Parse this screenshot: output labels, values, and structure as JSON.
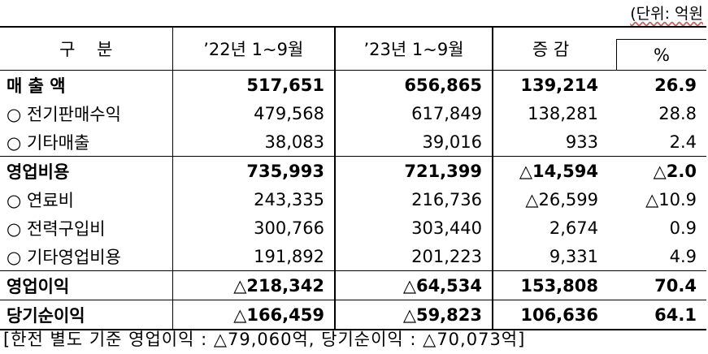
{
  "unit_label": "(단위: 억원",
  "headers": {
    "category": "구    분",
    "y2022": "’22년 1~9월",
    "y2023": "’23년 1~9월",
    "change": "증 감",
    "percent": "%"
  },
  "rows": [
    {
      "label": "매 출 액",
      "y2022": "517,651",
      "y2023": "656,865",
      "change": "139,214",
      "percent": "26.9",
      "bold": true
    },
    {
      "label": "○ 전기판매수익",
      "y2022": "479,568",
      "y2023": "617,849",
      "change": "138,281",
      "percent": "28.8",
      "bold": false
    },
    {
      "label": "○ 기타매출",
      "y2022": "38,083",
      "y2023": "39,016",
      "change": "933",
      "percent": "2.4",
      "bold": false
    },
    {
      "label": "영업비용",
      "y2022": "735,993",
      "y2023": "721,399",
      "change": "△14,594",
      "percent": "△2.0",
      "bold": true
    },
    {
      "label": "○ 연료비",
      "y2022": "243,335",
      "y2023": "216,736",
      "change": "△26,599",
      "percent": "△10.9",
      "bold": false
    },
    {
      "label": "○ 전력구입비",
      "y2022": "300,766",
      "y2023": "303,440",
      "change": "2,674",
      "percent": "0.9",
      "bold": false
    },
    {
      "label": "○ 기타영업비용",
      "y2022": "191,892",
      "y2023": "201,223",
      "change": "9,331",
      "percent": "4.9",
      "bold": false
    },
    {
      "label": "영업이익",
      "y2022": "△218,342",
      "y2023": "△64,534",
      "change": "153,808",
      "percent": "70.4",
      "bold": true
    },
    {
      "label": "당기순이익",
      "y2022": "△166,459",
      "y2023": "△59,823",
      "change": "106,636",
      "percent": "64.1",
      "bold": true
    }
  ],
  "note": "[한전 별도 기준 영업이익 : △79,060억, 당기순이익 : △70,073억]"
}
